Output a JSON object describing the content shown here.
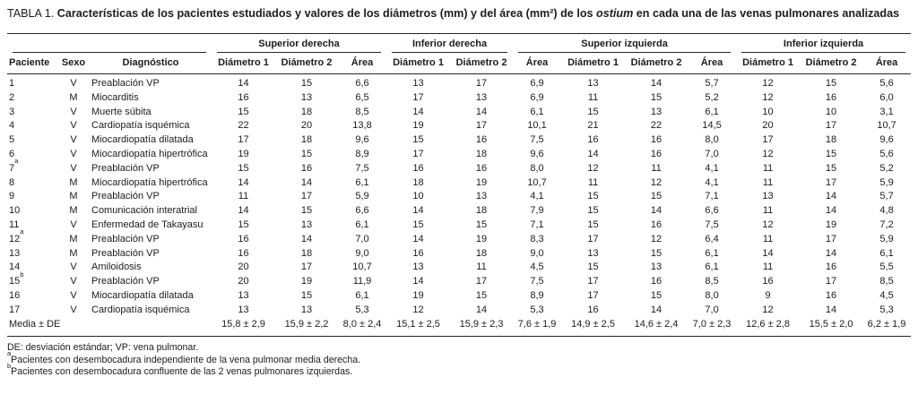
{
  "title": {
    "label": "TABLA 1.",
    "bold_before_italic": " Características de los pacientes estudiados y valores de los diámetros (mm) y del área (mm²) de los ",
    "italic": "ostium",
    "bold_after_italic": " en cada una de las venas pulmonares analizadas"
  },
  "table": {
    "groups": [
      "Superior derecha",
      "Inferior derecha",
      "Superior izquierda",
      "Inferior izquierda"
    ],
    "col_headers": {
      "paciente": "Paciente",
      "sexo": "Sexo",
      "diagnostico": "Diagnóstico"
    },
    "sub_headers": [
      "Diámetro 1",
      "Diámetro 2",
      "Área"
    ],
    "rows": [
      {
        "paciente": "1",
        "sup": "",
        "sexo": "V",
        "diagnostico": "Preablación VP",
        "values": [
          "14",
          "15",
          "6,6",
          "13",
          "17",
          "6,9",
          "13",
          "14",
          "5,7",
          "12",
          "15",
          "5,6"
        ]
      },
      {
        "paciente": "2",
        "sup": "",
        "sexo": "M",
        "diagnostico": "Miocarditis",
        "values": [
          "16",
          "13",
          "6,5",
          "17",
          "13",
          "6,9",
          "11",
          "15",
          "5,2",
          "12",
          "16",
          "6,0"
        ]
      },
      {
        "paciente": "3",
        "sup": "",
        "sexo": "V",
        "diagnostico": "Muerte súbita",
        "values": [
          "15",
          "18",
          "8,5",
          "14",
          "14",
          "6,1",
          "15",
          "13",
          "6,1",
          "10",
          "10",
          "3,1"
        ]
      },
      {
        "paciente": "4",
        "sup": "",
        "sexo": "V",
        "diagnostico": "Cardiopatía isquémica",
        "values": [
          "22",
          "20",
          "13,8",
          "19",
          "17",
          "10,1",
          "21",
          "22",
          "14,5",
          "20",
          "17",
          "10,7"
        ]
      },
      {
        "paciente": "5",
        "sup": "",
        "sexo": "V",
        "diagnostico": "Miocardiopatía dilatada",
        "values": [
          "17",
          "18",
          "9,6",
          "15",
          "16",
          "7,5",
          "16",
          "16",
          "8,0",
          "17",
          "18",
          "9,6"
        ]
      },
      {
        "paciente": "6",
        "sup": "",
        "sexo": "V",
        "diagnostico": "Miocardiopatía hipertrófica",
        "values": [
          "19",
          "15",
          "8,9",
          "17",
          "18",
          "9,6",
          "14",
          "16",
          "7,0",
          "12",
          "15",
          "5,6"
        ]
      },
      {
        "paciente": "7",
        "sup": "a",
        "sexo": "V",
        "diagnostico": "Preablación VP",
        "values": [
          "15",
          "16",
          "7,5",
          "16",
          "16",
          "8,0",
          "12",
          "11",
          "4,1",
          "11",
          "15",
          "5,2"
        ]
      },
      {
        "paciente": "8",
        "sup": "",
        "sexo": "M",
        "diagnostico": "Miocardiopatía hipertrófica",
        "values": [
          "14",
          "14",
          "6,1",
          "18",
          "19",
          "10,7",
          "11",
          "12",
          "4,1",
          "11",
          "17",
          "5,9"
        ]
      },
      {
        "paciente": "9",
        "sup": "",
        "sexo": "M",
        "diagnostico": "Preablación VP",
        "values": [
          "11",
          "17",
          "5,9",
          "10",
          "13",
          "4,1",
          "15",
          "15",
          "7,1",
          "13",
          "14",
          "5,7"
        ]
      },
      {
        "paciente": "10",
        "sup": "",
        "sexo": "M",
        "diagnostico": "Comunicación interatrial",
        "values": [
          "14",
          "15",
          "6,6",
          "14",
          "18",
          "7,9",
          "15",
          "14",
          "6,6",
          "11",
          "14",
          "4,8"
        ]
      },
      {
        "paciente": "11",
        "sup": "",
        "sexo": "V",
        "diagnostico": "Enfermedad de Takayasu",
        "values": [
          "15",
          "13",
          "6,1",
          "15",
          "15",
          "7,1",
          "15",
          "16",
          "7,5",
          "12",
          "19",
          "7,2"
        ]
      },
      {
        "paciente": "12",
        "sup": "a",
        "sexo": "M",
        "diagnostico": "Preablación VP",
        "values": [
          "16",
          "14",
          "7,0",
          "14",
          "19",
          "8,3",
          "17",
          "12",
          "6,4",
          "11",
          "17",
          "5,9"
        ]
      },
      {
        "paciente": "13",
        "sup": "",
        "sexo": "M",
        "diagnostico": "Preablación VP",
        "values": [
          "16",
          "18",
          "9,0",
          "16",
          "18",
          "9,0",
          "13",
          "15",
          "6,1",
          "14",
          "14",
          "6,1"
        ]
      },
      {
        "paciente": "14",
        "sup": "",
        "sexo": "V",
        "diagnostico": "Amiloidosis",
        "values": [
          "20",
          "17",
          "10,7",
          "13",
          "11",
          "4,5",
          "15",
          "13",
          "6,1",
          "11",
          "16",
          "5,5"
        ]
      },
      {
        "paciente": "15",
        "sup": "b",
        "sexo": "V",
        "diagnostico": "Preablación VP",
        "values": [
          "20",
          "19",
          "11,9",
          "14",
          "17",
          "7,5",
          "17",
          "16",
          "8,5",
          "16",
          "17",
          "8,5"
        ]
      },
      {
        "paciente": "16",
        "sup": "",
        "sexo": "V",
        "diagnostico": "Miocardiopatía dilatada",
        "values": [
          "13",
          "15",
          "6,1",
          "19",
          "15",
          "8,9",
          "17",
          "15",
          "8,0",
          "9",
          "16",
          "4,5"
        ]
      },
      {
        "paciente": "17",
        "sup": "",
        "sexo": "V",
        "diagnostico": "Cardiopatía isquémica",
        "values": [
          "13",
          "13",
          "5,3",
          "12",
          "14",
          "5,3",
          "16",
          "14",
          "7,0",
          "12",
          "14",
          "5,3"
        ]
      }
    ],
    "media_row": {
      "label": "Media ± DE",
      "values": [
        "15,8 ± 2,9",
        "15,9 ± 2,2",
        "8,0 ± 2,4",
        "15,1 ± 2,5",
        "15,9 ± 2,3",
        "7,6 ± 1,9",
        "14,9 ± 2,5",
        "14,6 ± 2,4",
        "7,0 ± 2,3",
        "12,6 ± 2,8",
        "15,5 ± 2,0",
        "6,2 ± 1,9"
      ]
    }
  },
  "footnotes": [
    {
      "marker": "",
      "text": "DE: desviación estándar; VP: vena pulmonar."
    },
    {
      "marker": "a",
      "text": "Pacientes con desembocadura independiente de la vena pulmonar media derecha."
    },
    {
      "marker": "b",
      "text": "Pacientes con desembocadura confluente de las 2 venas pulmonares izquierdas."
    }
  ],
  "colors": {
    "background": "#ffffff",
    "text": "#1c1c1c",
    "rule": "#262626"
  }
}
